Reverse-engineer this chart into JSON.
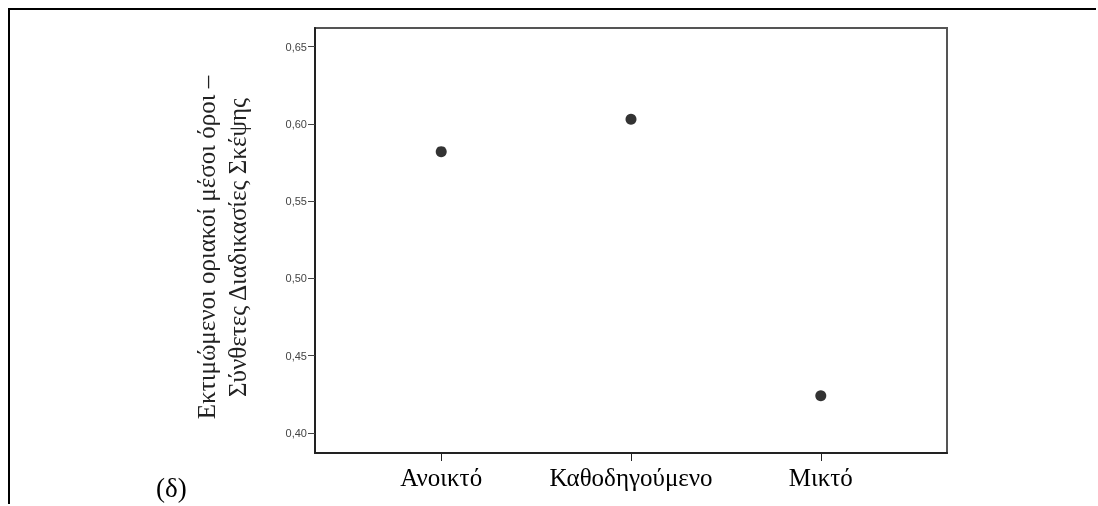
{
  "chart_data": {
    "type": "scatter",
    "ylabel": "Εκτιμώμενοι οριακοί μέσοι όροι –\nΣύνθετες Διαδικασίες Σκέψης",
    "annotations": [
      "(δ)"
    ],
    "categories": [
      "Ανοικτό",
      "Καθοδηγούμενο",
      "Μικτό"
    ],
    "values": [
      0.582,
      0.603,
      0.424
    ],
    "color": "#000000",
    "marker": "circle",
    "ylim": [
      0.387,
      0.662
    ],
    "yticks": [
      {
        "value": 0.4,
        "label": "0,40"
      },
      {
        "value": 0.45,
        "label": "0,45"
      },
      {
        "value": 0.5,
        "label": "0,50"
      },
      {
        "value": 0.55,
        "label": "0,55"
      },
      {
        "value": 0.6,
        "label": "0,60"
      },
      {
        "value": 0.65,
        "label": "0,65"
      }
    ]
  }
}
